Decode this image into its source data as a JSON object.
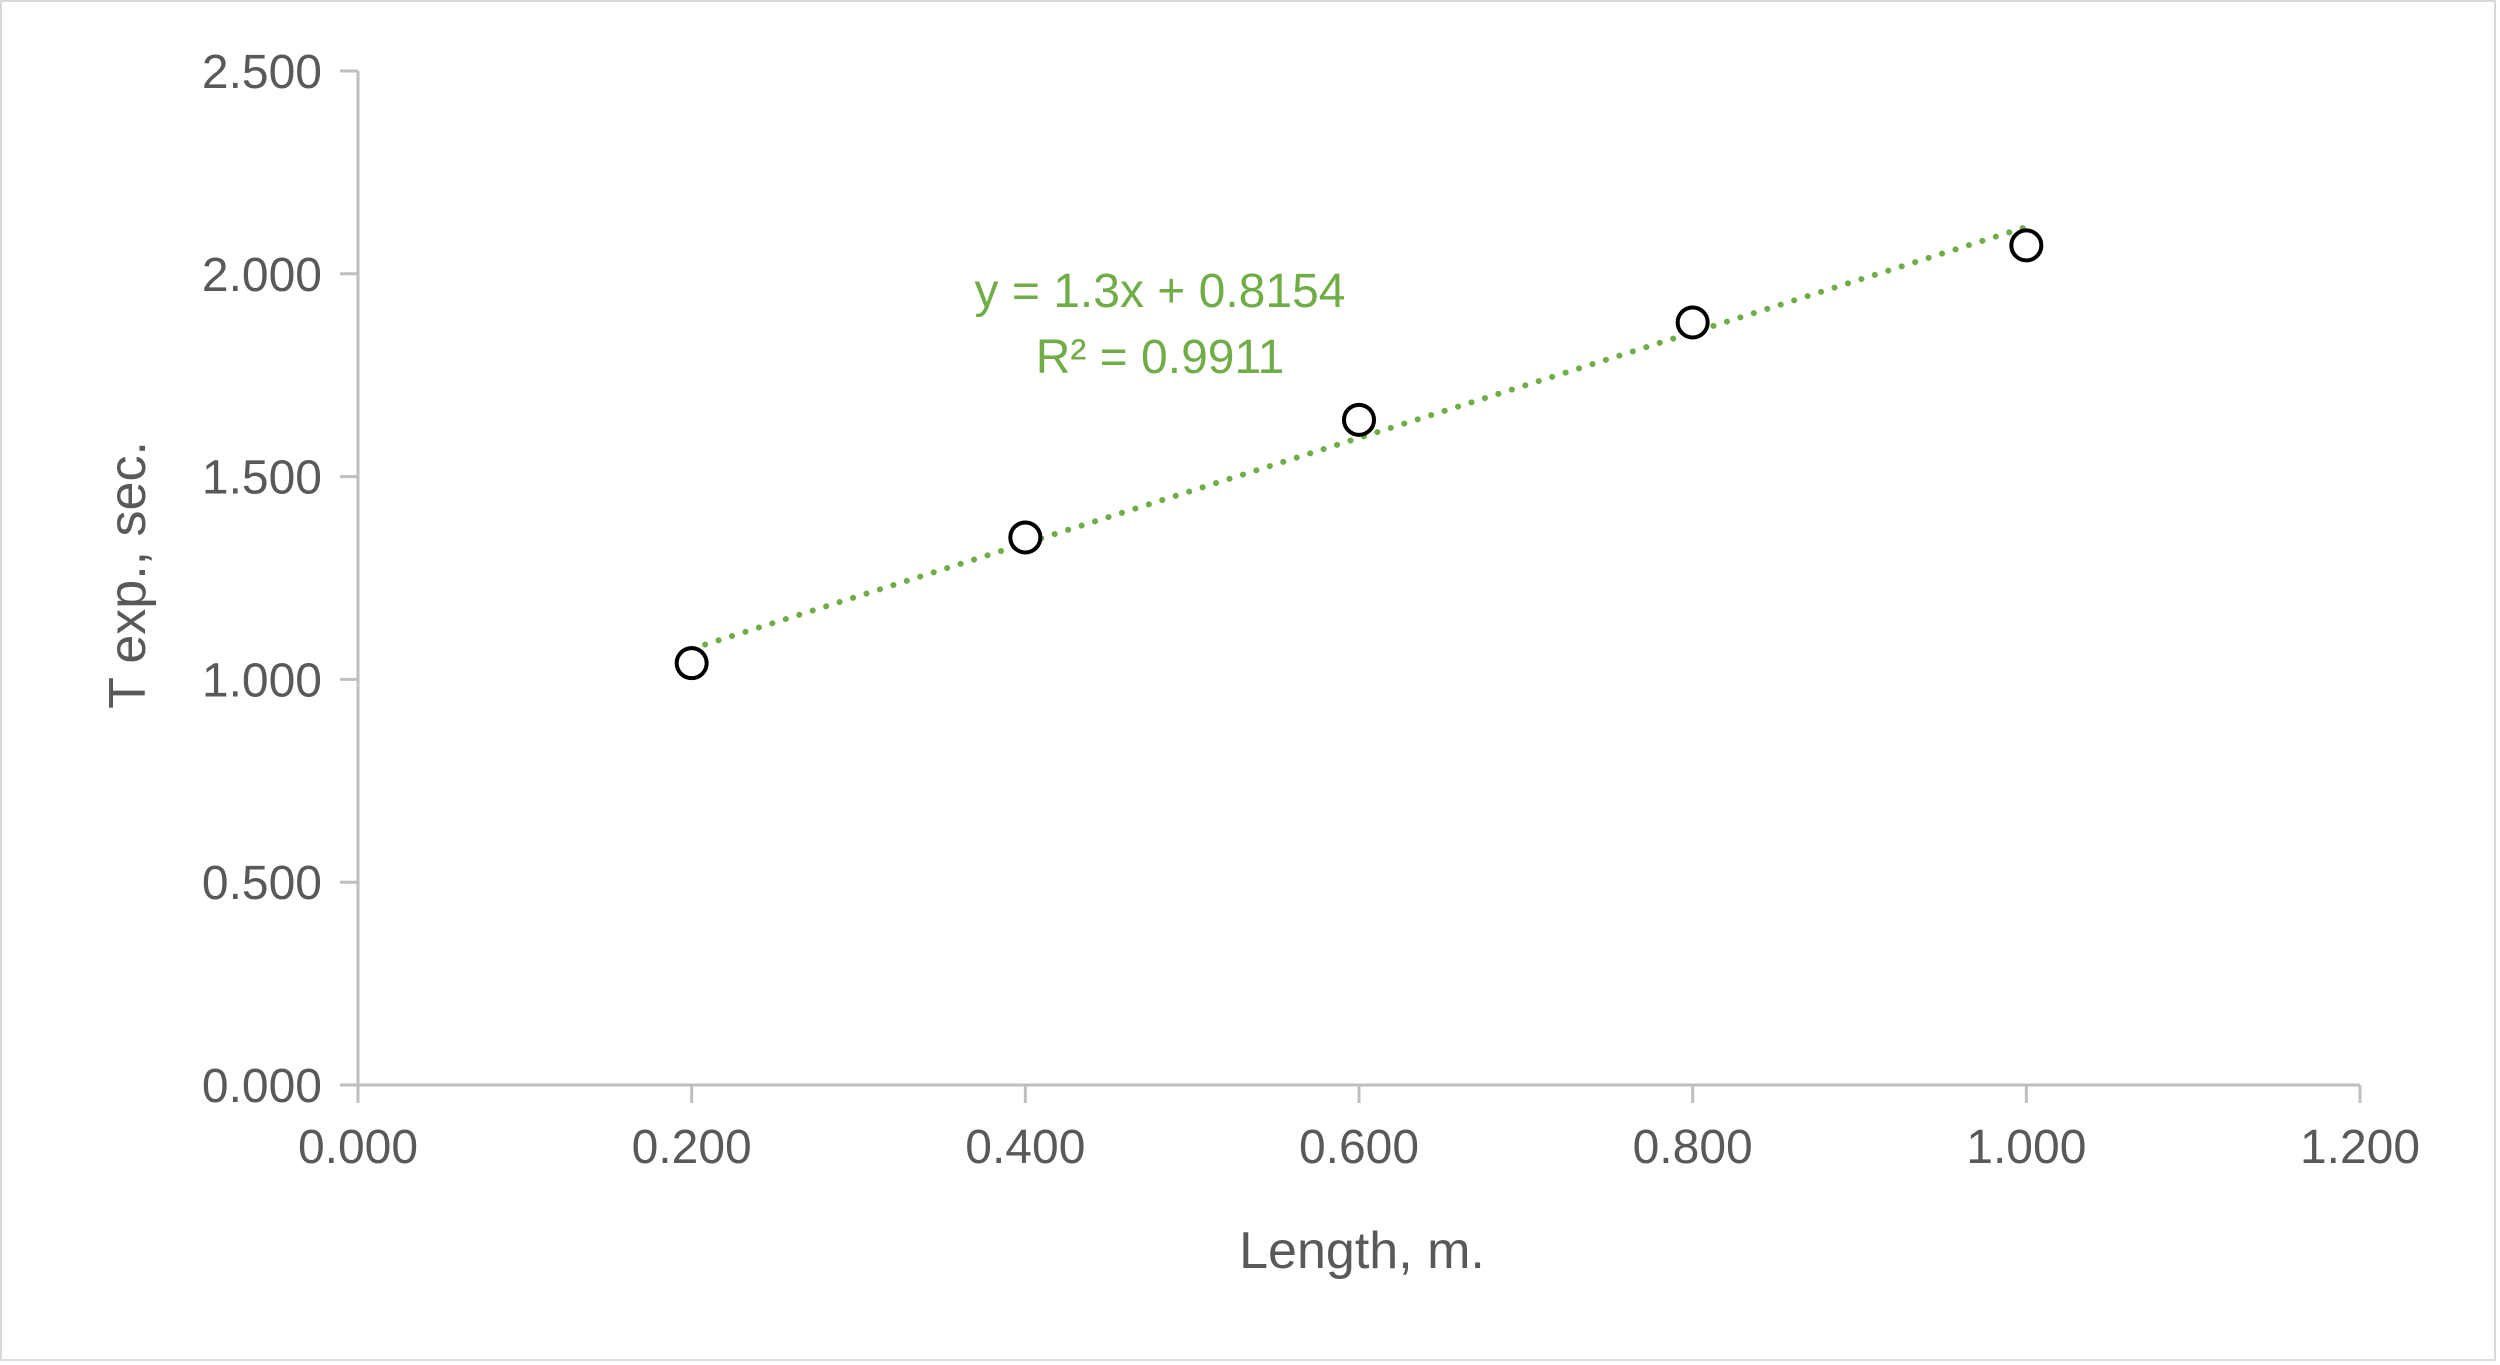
{
  "chart_data": {
    "type": "scatter",
    "title": "",
    "xlabel": "Length, m.",
    "ylabel": "T exp., sec.",
    "xlim": [
      0,
      1.2
    ],
    "ylim": [
      0,
      2.5
    ],
    "x_ticks": [
      "0.000",
      "0.200",
      "0.400",
      "0.600",
      "0.800",
      "1.000",
      "1.200"
    ],
    "y_ticks": [
      "0.000",
      "0.500",
      "1.000",
      "1.500",
      "2.000",
      "2.500"
    ],
    "grid": false,
    "legend": "none",
    "series": [
      {
        "x": [
          0.2,
          0.4,
          0.6,
          0.8,
          1.0
        ],
        "y": [
          1.04,
          1.35,
          1.64,
          1.88,
          2.07
        ],
        "marker": "open-circle",
        "color": "#000000"
      }
    ],
    "trendline": {
      "type": "linear",
      "slope": 1.3,
      "intercept": 0.8154,
      "x_range": [
        0.2,
        1.0
      ],
      "style": "dotted",
      "color": "#70ad47",
      "equation": "y = 1.3x + 0.8154",
      "r_squared": "R² = 0.9911"
    }
  }
}
